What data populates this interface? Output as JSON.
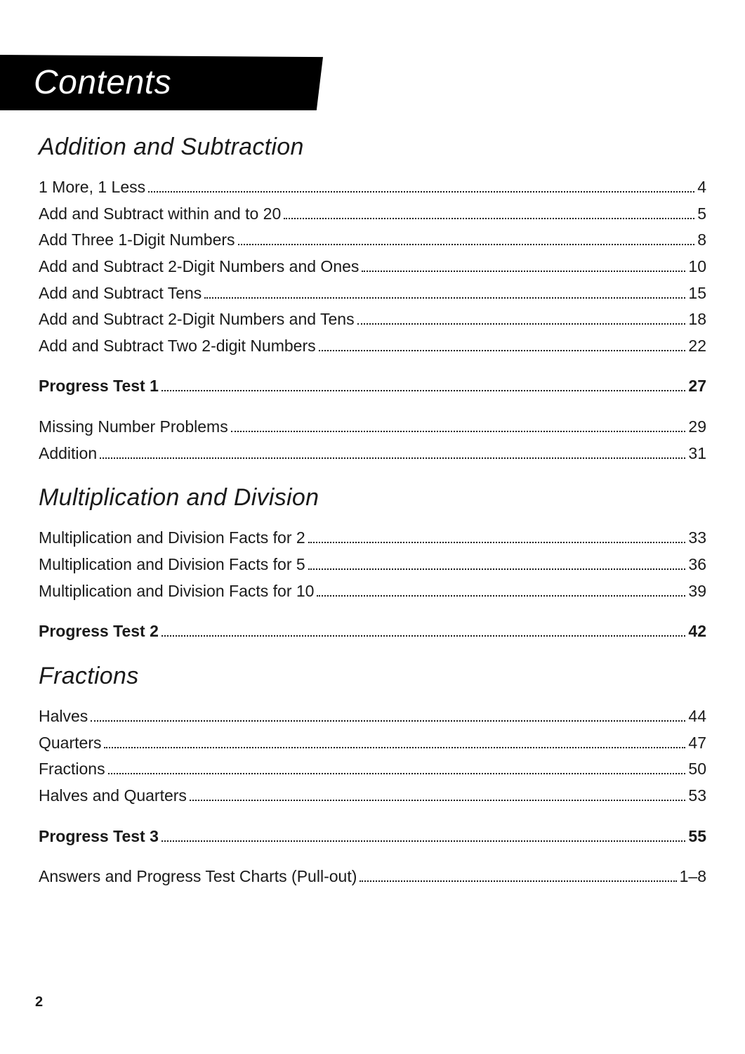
{
  "title": "Contents",
  "pageNumber": "2",
  "sections": [
    {
      "heading": "Addition and Subtraction",
      "groups": [
        [
          {
            "label": "1 More, 1 Less",
            "page": "4",
            "bold": false
          },
          {
            "label": "Add and Subtract within and to 20",
            "page": "5",
            "bold": false
          },
          {
            "label": "Add Three 1-Digit Numbers",
            "page": "8",
            "bold": false
          },
          {
            "label": "Add and Subtract 2-Digit Numbers and Ones",
            "page": "10",
            "bold": false
          },
          {
            "label": "Add and Subtract Tens",
            "page": "15",
            "bold": false
          },
          {
            "label": "Add and Subtract 2-Digit Numbers and Tens",
            "page": "18",
            "bold": false
          },
          {
            "label": "Add and Subtract Two 2-digit Numbers",
            "page": "22",
            "bold": false
          }
        ],
        [
          {
            "label": "Progress Test 1",
            "page": "27",
            "bold": true
          }
        ],
        [
          {
            "label": "Missing Number Problems",
            "page": "29",
            "bold": false
          },
          {
            "label": "Addition",
            "page": "31",
            "bold": false
          }
        ]
      ]
    },
    {
      "heading": "Multiplication and Division",
      "groups": [
        [
          {
            "label": "Multiplication and Division Facts for 2",
            "page": "33",
            "bold": false
          },
          {
            "label": "Multiplication and Division Facts for 5",
            "page": "36",
            "bold": false
          },
          {
            "label": "Multiplication and Division Facts for 10",
            "page": "39",
            "bold": false
          }
        ],
        [
          {
            "label": "Progress Test 2",
            "page": "42",
            "bold": true
          }
        ]
      ]
    },
    {
      "heading": "Fractions",
      "groups": [
        [
          {
            "label": "Halves",
            "page": "44",
            "bold": false
          },
          {
            "label": "Quarters",
            "page": "47",
            "bold": false
          },
          {
            "label": "Fractions",
            "page": "50",
            "bold": false
          },
          {
            "label": "Halves and Quarters",
            "page": "53",
            "bold": false
          }
        ],
        [
          {
            "label": "Progress Test 3",
            "page": "55",
            "bold": true
          }
        ],
        [
          {
            "label": "Answers and Progress Test Charts (Pull-out)",
            "page": "1–8",
            "bold": false
          }
        ]
      ]
    }
  ]
}
